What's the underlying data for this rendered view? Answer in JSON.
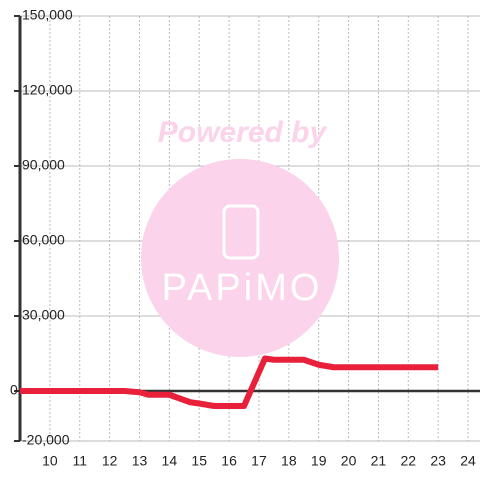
{
  "chart_data": {
    "type": "line",
    "watermark": [
      "Powered by",
      "PAPiMO"
    ],
    "x": [
      9,
      10,
      11,
      12,
      12.5,
      13,
      13.3,
      14,
      14.7,
      15,
      15.5,
      16,
      16.5,
      17.2,
      17.5,
      18,
      18.5,
      19,
      19.5,
      20,
      21,
      22,
      23
    ],
    "series": [
      {
        "color": "#e8203a",
        "values": [
          0,
          0,
          0,
          0,
          0,
          -500,
          -1500,
          -1500,
          -4500,
          -5000,
          -6000,
          -6000,
          -6000,
          13000,
          12500,
          12500,
          12500,
          10500,
          9500,
          9500,
          9500,
          9500,
          9500
        ]
      }
    ],
    "xlim": [
      9,
      24.4
    ],
    "xticks": [
      10,
      11,
      12,
      13,
      14,
      15,
      16,
      17,
      18,
      19,
      20,
      21,
      22,
      23,
      24
    ],
    "ylim": [
      -20000,
      150000
    ],
    "yticks": [
      {
        "value": -20000,
        "label": "-20,000"
      },
      0,
      {
        "value": 30000,
        "label": "30,000"
      },
      {
        "value": 60000,
        "label": "60,000"
      },
      {
        "value": 90000,
        "label": "90,000"
      },
      {
        "value": 120000,
        "label": "120,000"
      },
      {
        "value": 150000,
        "label": "150,000"
      }
    ],
    "grid": true
  }
}
